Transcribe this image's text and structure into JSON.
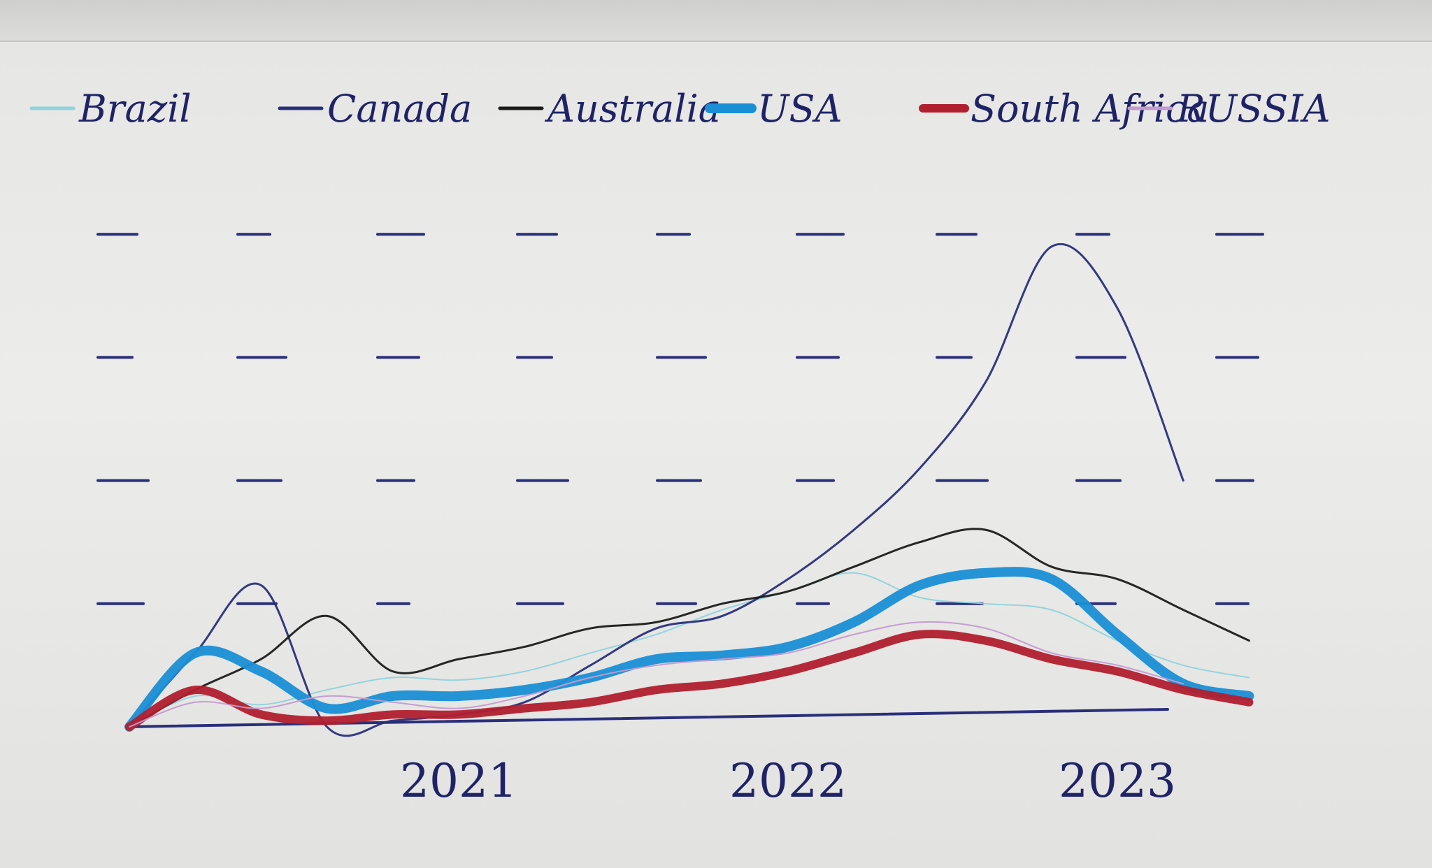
{
  "chart_data": {
    "type": "line",
    "title": "",
    "xlabel": "",
    "ylabel": "",
    "x_ticks": [
      "2021",
      "2022",
      "2023"
    ],
    "x": [
      2020.0,
      2020.2,
      2020.4,
      2020.6,
      2020.8,
      2021.0,
      2021.2,
      2021.4,
      2021.6,
      2021.8,
      2022.0,
      2022.2,
      2022.4,
      2022.6,
      2022.8,
      2023.0,
      2023.2,
      2023.4
    ],
    "xlim": [
      2020.0,
      2023.45
    ],
    "ylim": [
      0,
      4.2
    ],
    "grid": true,
    "legend_position": "top",
    "series": [
      {
        "name": "Brazil",
        "color": "#8fd3dc",
        "width": 2,
        "values": [
          0.0,
          0.25,
          0.18,
          0.3,
          0.4,
          0.38,
          0.45,
          0.6,
          0.75,
          0.95,
          1.1,
          1.25,
          1.05,
          1.0,
          0.95,
          0.7,
          0.5,
          0.4
        ]
      },
      {
        "name": "Canada",
        "color": "#2a2f7a",
        "width": 3,
        "values": [
          0.0,
          0.6,
          1.15,
          0.0,
          0.05,
          0.1,
          0.2,
          0.5,
          0.8,
          0.9,
          1.2,
          1.6,
          2.1,
          2.8,
          3.9,
          3.4,
          2.0,
          null
        ]
      },
      {
        "name": "Australia",
        "color": "#1b1b1b",
        "width": 3,
        "values": [
          0.0,
          0.3,
          0.55,
          0.9,
          0.45,
          0.55,
          0.65,
          0.8,
          0.85,
          1.0,
          1.1,
          1.3,
          1.5,
          1.6,
          1.3,
          1.2,
          0.95,
          0.7
        ]
      },
      {
        "name": "USA",
        "color": "#1a8fd6",
        "width": 14,
        "values": [
          0.0,
          0.6,
          0.45,
          0.15,
          0.25,
          0.25,
          0.3,
          0.4,
          0.55,
          0.58,
          0.65,
          0.85,
          1.15,
          1.25,
          1.2,
          0.75,
          0.35,
          0.25
        ]
      },
      {
        "name": "South Africa",
        "color": "#b11f2e",
        "width": 12,
        "values": [
          0.0,
          0.3,
          0.1,
          0.05,
          0.1,
          0.1,
          0.15,
          0.2,
          0.3,
          0.35,
          0.45,
          0.6,
          0.75,
          0.7,
          0.55,
          0.45,
          0.3,
          0.2
        ]
      },
      {
        "name": "RUSSIA",
        "color": "#c39ad0",
        "width": 2,
        "values": [
          0.0,
          0.2,
          0.15,
          0.25,
          0.2,
          0.15,
          0.25,
          0.4,
          0.5,
          0.55,
          0.6,
          0.75,
          0.85,
          0.8,
          0.6,
          0.5,
          0.35,
          null
        ]
      }
    ]
  }
}
